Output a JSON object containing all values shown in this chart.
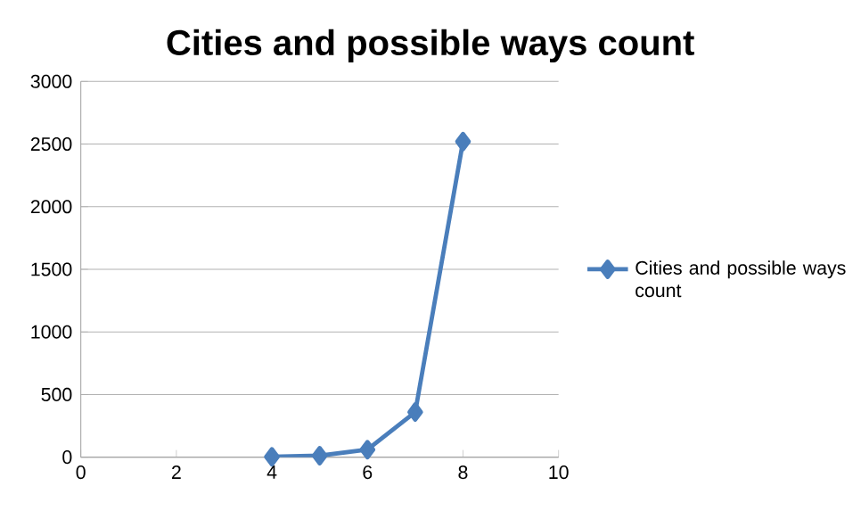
{
  "chart_data": {
    "type": "line",
    "title": "Cities and possible ways count",
    "x": [
      4,
      5,
      6,
      7,
      8
    ],
    "series": [
      {
        "name": "Cities and possible ways count",
        "color": "#4a7ebb",
        "values": [
          3,
          12,
          60,
          360,
          2520
        ]
      }
    ],
    "xlim": [
      0,
      10
    ],
    "xticks": [
      0,
      2,
      4,
      6,
      8,
      10
    ],
    "ylim": [
      0,
      3000
    ],
    "yticks": [
      0,
      500,
      1000,
      1500,
      2000,
      2500,
      3000
    ],
    "grid": "y",
    "legend": "right",
    "marker": "diamond",
    "line_style": "solid"
  }
}
